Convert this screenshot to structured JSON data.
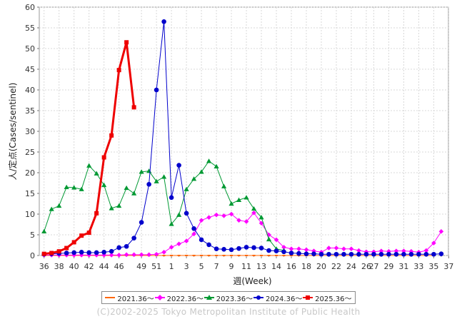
{
  "chart_data": {
    "type": "line",
    "xlabel": "週(Week)",
    "ylabel": "人/定点(Cases/sentinel)",
    "ylim": [
      0,
      60
    ],
    "yticks": [
      0,
      5,
      10,
      15,
      20,
      25,
      30,
      35,
      40,
      45,
      50,
      55,
      60
    ],
    "xtick_labels": [
      "36",
      "38",
      "40",
      "42",
      "44",
      "46",
      "49",
      "51",
      "1",
      "3",
      "5",
      "7",
      "9",
      "11",
      "13",
      "14",
      "16",
      "18",
      "20",
      "22",
      "24",
      "26",
      "27",
      "29",
      "31",
      "33",
      "35",
      "37"
    ],
    "grid": true,
    "legend_position": "bottom",
    "series": [
      {
        "name": "2021.36〜",
        "color": "#ff6600",
        "marker": "square",
        "values": [
          0,
          0,
          0,
          0,
          0,
          0,
          0,
          0,
          0,
          0,
          0,
          0,
          0,
          0,
          0,
          0,
          0,
          0,
          0,
          0,
          0,
          0,
          0,
          0,
          0,
          0,
          0,
          0,
          0,
          0,
          0,
          0,
          0,
          0,
          0,
          0,
          0,
          0,
          0,
          0,
          0,
          0,
          0,
          0,
          0,
          0,
          0,
          0,
          0,
          0,
          0,
          0,
          0
        ]
      },
      {
        "name": "2022.36〜",
        "color": "#ff00ff",
        "marker": "diamond",
        "values": [
          0.1,
          0.1,
          0.1,
          0.1,
          0.1,
          0.1,
          0.1,
          0.1,
          0.1,
          0.1,
          0.1,
          0.2,
          0.2,
          0.2,
          0.2,
          0.3,
          0.8,
          2.0,
          2.8,
          3.5,
          5.2,
          8.5,
          9.2,
          9.8,
          9.6,
          10.0,
          8.5,
          8.2,
          10.3,
          7.8,
          5.0,
          3.8,
          2.0,
          1.6,
          1.6,
          1.4,
          1.1,
          0.8,
          1.8,
          1.8,
          1.6,
          1.6,
          1.2,
          0.9,
          0.9,
          1.1,
          1.0,
          1.1,
          1.1,
          1.0,
          0.8,
          1.2,
          3.0,
          5.8
        ]
      },
      {
        "name": "2023.36〜",
        "color": "#009933",
        "marker": "triangle",
        "values": [
          5.8,
          11.2,
          12.0,
          16.5,
          16.4,
          16.0,
          21.7,
          19.8,
          17.0,
          11.4,
          12.0,
          16.3,
          15.0,
          20.2,
          20.4,
          17.9,
          19.0,
          7.6,
          9.8,
          16.0,
          18.5,
          20.2,
          22.8,
          21.5,
          16.7,
          12.5,
          13.4,
          14.0,
          11.3,
          9.2,
          3.9,
          1.6,
          1.2
        ]
      },
      {
        "name": "2024.36〜",
        "color": "#0000cc",
        "marker": "circle",
        "values": [
          0.3,
          0.4,
          0.5,
          0.6,
          0.7,
          0.8,
          0.7,
          0.7,
          0.8,
          1.0,
          1.9,
          2.2,
          4.2,
          8.0,
          17.2,
          40.0,
          56.5,
          14.0,
          21.8,
          10.2,
          6.5,
          3.8,
          2.6,
          1.6,
          1.5,
          1.4,
          1.7,
          2.0,
          1.9,
          1.8,
          1.2,
          1.1,
          0.9,
          0.6,
          0.5,
          0.4,
          0.4,
          0.3,
          0.3,
          0.3,
          0.3,
          0.3,
          0.3,
          0.3,
          0.3,
          0.3,
          0.3,
          0.3,
          0.3,
          0.3,
          0.3,
          0.3,
          0.3,
          0.4
        ]
      },
      {
        "name": "2025.36〜",
        "color": "#ee0000",
        "marker": "square",
        "values": [
          0.4,
          0.6,
          1.0,
          1.8,
          3.2,
          4.8,
          5.5,
          10.2,
          23.7,
          29.0,
          44.8,
          51.5,
          35.8
        ]
      }
    ]
  },
  "copyright": "(C)2002-2025 Tokyo Metropolitan Institute of Public Health"
}
